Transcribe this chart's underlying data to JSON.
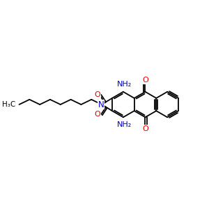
{
  "bg_color": "#ffffff",
  "bond_color": "#000000",
  "N_color": "#0000cc",
  "O_color": "#dd0000",
  "line_width": 1.3,
  "figsize": [
    3.0,
    3.0
  ],
  "dpi": 100,
  "xlim": [
    0,
    12
  ],
  "ylim": [
    0,
    10
  ]
}
